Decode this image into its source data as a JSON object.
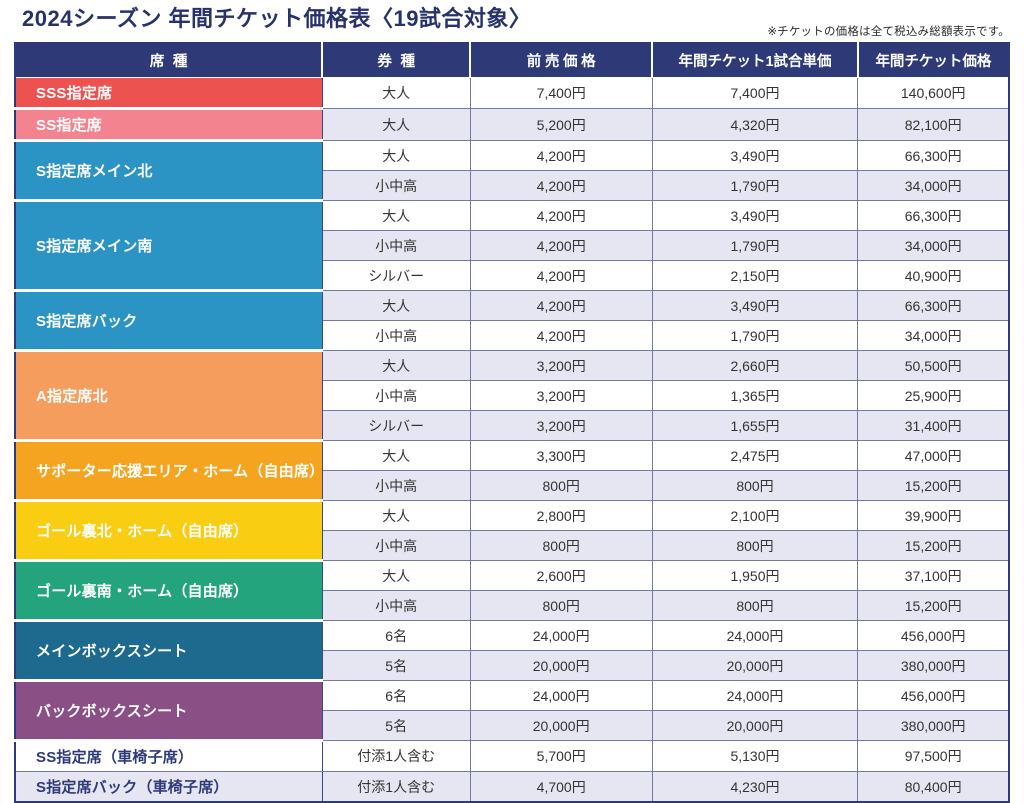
{
  "title": "2024シーズン 年間チケット価格表〈19試合対象〉",
  "note": "※チケットの価格は全て税込み総額表示です。",
  "colors": {
    "header_navy": "#2e3a78",
    "stripe_lavender": "#e6e6f2",
    "grid_line": "#7279aa",
    "title_navy": "#27316c"
  },
  "table": {
    "headers": [
      "席種",
      "券種",
      "前売価格",
      "年間チケット1試合単価",
      "年間チケット価格"
    ],
    "groups": [
      {
        "seat": "SSS指定席",
        "color": "#ec5350",
        "rows": [
          {
            "ticket": "大人",
            "advance": "7,400円",
            "per_game": "7,400円",
            "annual": "140,600円"
          }
        ]
      },
      {
        "seat": "SS指定席",
        "color": "#f2838f",
        "rows": [
          {
            "ticket": "大人",
            "advance": "5,200円",
            "per_game": "4,320円",
            "annual": "82,100円"
          }
        ]
      },
      {
        "seat": "S指定席メイン北",
        "color": "#2b94c4",
        "rows": [
          {
            "ticket": "大人",
            "advance": "4,200円",
            "per_game": "3,490円",
            "annual": "66,300円"
          },
          {
            "ticket": "小中高",
            "advance": "4,200円",
            "per_game": "1,790円",
            "annual": "34,000円"
          }
        ]
      },
      {
        "seat": "S指定席メイン南",
        "color": "#2b94c4",
        "rows": [
          {
            "ticket": "大人",
            "advance": "4,200円",
            "per_game": "3,490円",
            "annual": "66,300円"
          },
          {
            "ticket": "小中高",
            "advance": "4,200円",
            "per_game": "1,790円",
            "annual": "34,000円"
          },
          {
            "ticket": "シルバー",
            "advance": "4,200円",
            "per_game": "2,150円",
            "annual": "40,900円"
          }
        ]
      },
      {
        "seat": "S指定席バック",
        "color": "#2b94c4",
        "rows": [
          {
            "ticket": "大人",
            "advance": "4,200円",
            "per_game": "3,490円",
            "annual": "66,300円"
          },
          {
            "ticket": "小中高",
            "advance": "4,200円",
            "per_game": "1,790円",
            "annual": "34,000円"
          }
        ]
      },
      {
        "seat": "A指定席北",
        "color": "#f49d5c",
        "rows": [
          {
            "ticket": "大人",
            "advance": "3,200円",
            "per_game": "2,660円",
            "annual": "50,500円"
          },
          {
            "ticket": "小中高",
            "advance": "3,200円",
            "per_game": "1,365円",
            "annual": "25,900円"
          },
          {
            "ticket": "シルバー",
            "advance": "3,200円",
            "per_game": "1,655円",
            "annual": "31,400円"
          }
        ]
      },
      {
        "seat": "サポーター応援エリア・ホーム（自由席）",
        "color": "#f5a41f",
        "rows": [
          {
            "ticket": "大人",
            "advance": "3,300円",
            "per_game": "2,475円",
            "annual": "47,000円"
          },
          {
            "ticket": "小中高",
            "advance": "800円",
            "per_game": "800円",
            "annual": "15,200円"
          }
        ]
      },
      {
        "seat": "ゴール裏北・ホーム（自由席）",
        "color": "#f8cd12",
        "rows": [
          {
            "ticket": "大人",
            "advance": "2,800円",
            "per_game": "2,100円",
            "annual": "39,900円"
          },
          {
            "ticket": "小中高",
            "advance": "800円",
            "per_game": "800円",
            "annual": "15,200円"
          }
        ]
      },
      {
        "seat": "ゴール裏南・ホーム（自由席）",
        "color": "#23a47c",
        "rows": [
          {
            "ticket": "大人",
            "advance": "2,600円",
            "per_game": "1,950円",
            "annual": "37,100円"
          },
          {
            "ticket": "小中高",
            "advance": "800円",
            "per_game": "800円",
            "annual": "15,200円"
          }
        ]
      },
      {
        "seat": "メインボックスシート",
        "color": "#1d6a8e",
        "rows": [
          {
            "ticket": "6名",
            "advance": "24,000円",
            "per_game": "24,000円",
            "annual": "456,000円"
          },
          {
            "ticket": "5名",
            "advance": "20,000円",
            "per_game": "20,000円",
            "annual": "380,000円"
          }
        ]
      },
      {
        "seat": "バックボックスシート",
        "color": "#8a4f84",
        "rows": [
          {
            "ticket": "6名",
            "advance": "24,000円",
            "per_game": "24,000円",
            "annual": "456,000円"
          },
          {
            "ticket": "5名",
            "advance": "20,000円",
            "per_game": "20,000円",
            "annual": "380,000円"
          }
        ]
      },
      {
        "seat": "SS指定席（車椅子席）",
        "color": null,
        "rows": [
          {
            "ticket": "付添1人含む",
            "advance": "5,700円",
            "per_game": "5,130円",
            "annual": "97,500円"
          }
        ]
      },
      {
        "seat": "S指定席バック（車椅子席）",
        "color": null,
        "rows": [
          {
            "ticket": "付添1人含む",
            "advance": "4,700円",
            "per_game": "4,230円",
            "annual": "80,400円"
          }
        ]
      }
    ]
  }
}
